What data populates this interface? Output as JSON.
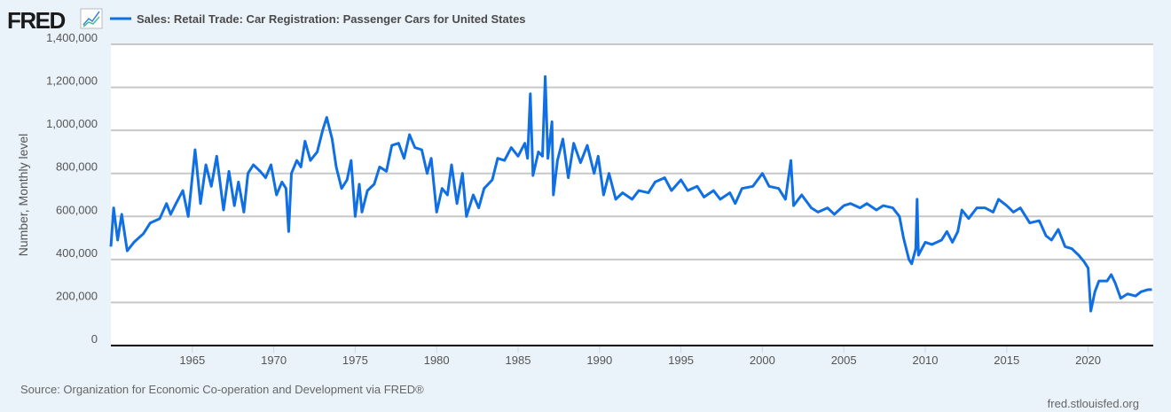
{
  "header": {
    "logo": "FRED",
    "logo_icon": "line-chart-icon",
    "legend_label": "Sales: Retail Trade: Car Registration: Passenger Cars for United States"
  },
  "footer": {
    "source": "Source: Organization for Economic Co-operation and Development via FRED®",
    "site": "fred.stlouisfed.org"
  },
  "colors": {
    "line": "#0f6fe3",
    "grid": "#c8c8c8",
    "plot_bg": "#ffffff",
    "page_bg": "#eaf2fa"
  },
  "chart_data": {
    "type": "line",
    "title": "",
    "xlabel": "",
    "ylabel": "Number, Monthly level",
    "xlim": [
      "1960-01",
      "2024-01"
    ],
    "ylim": [
      0,
      1400000
    ],
    "grid": true,
    "legend": "top-left",
    "x_ticks": [
      "1965",
      "1970",
      "1975",
      "1980",
      "1985",
      "1990",
      "1995",
      "2000",
      "2005",
      "2010",
      "2015",
      "2020"
    ],
    "y_ticks": [
      {
        "value": 0,
        "label": "0"
      },
      {
        "value": 200000,
        "label": "200,000"
      },
      {
        "value": 400000,
        "label": "400,000"
      },
      {
        "value": 600000,
        "label": "600,000"
      },
      {
        "value": 800000,
        "label": "800,000"
      },
      {
        "value": 1000000,
        "label": "1,000,000"
      },
      {
        "value": 1200000,
        "label": "1,200,000"
      },
      {
        "value": 1400000,
        "label": "1,400,000"
      }
    ],
    "series": [
      {
        "name": "Sales: Retail Trade: Car Registration: Passenger Cars for United States",
        "points": [
          [
            "1960-01",
            460000
          ],
          [
            "1960-03",
            640000
          ],
          [
            "1960-06",
            490000
          ],
          [
            "1960-09",
            610000
          ],
          [
            "1961-01",
            440000
          ],
          [
            "1961-06",
            480000
          ],
          [
            "1962-01",
            520000
          ],
          [
            "1962-06",
            570000
          ],
          [
            "1963-01",
            590000
          ],
          [
            "1963-06",
            660000
          ],
          [
            "1963-09",
            610000
          ],
          [
            "1964-01",
            660000
          ],
          [
            "1964-06",
            720000
          ],
          [
            "1964-10",
            600000
          ],
          [
            "1965-03",
            910000
          ],
          [
            "1965-07",
            660000
          ],
          [
            "1965-11",
            840000
          ],
          [
            "1966-03",
            740000
          ],
          [
            "1966-07",
            880000
          ],
          [
            "1966-12",
            630000
          ],
          [
            "1967-04",
            810000
          ],
          [
            "1967-08",
            650000
          ],
          [
            "1967-11",
            760000
          ],
          [
            "1968-03",
            620000
          ],
          [
            "1968-06",
            800000
          ],
          [
            "1968-10",
            840000
          ],
          [
            "1969-03",
            810000
          ],
          [
            "1969-07",
            780000
          ],
          [
            "1969-11",
            840000
          ],
          [
            "1970-03",
            700000
          ],
          [
            "1970-07",
            760000
          ],
          [
            "1970-10",
            730000
          ],
          [
            "1970-12",
            530000
          ],
          [
            "1971-02",
            800000
          ],
          [
            "1971-06",
            860000
          ],
          [
            "1971-09",
            830000
          ],
          [
            "1971-12",
            950000
          ],
          [
            "1972-04",
            860000
          ],
          [
            "1972-09",
            900000
          ],
          [
            "1973-01",
            1000000
          ],
          [
            "1973-04",
            1060000
          ],
          [
            "1973-08",
            960000
          ],
          [
            "1973-11",
            830000
          ],
          [
            "1974-03",
            730000
          ],
          [
            "1974-07",
            770000
          ],
          [
            "1974-10",
            860000
          ],
          [
            "1975-01",
            600000
          ],
          [
            "1975-04",
            750000
          ],
          [
            "1975-06",
            620000
          ],
          [
            "1975-10",
            720000
          ],
          [
            "1976-03",
            750000
          ],
          [
            "1976-07",
            830000
          ],
          [
            "1976-12",
            810000
          ],
          [
            "1977-04",
            930000
          ],
          [
            "1977-09",
            940000
          ],
          [
            "1978-01",
            870000
          ],
          [
            "1978-05",
            980000
          ],
          [
            "1978-09",
            920000
          ],
          [
            "1979-02",
            910000
          ],
          [
            "1979-06",
            800000
          ],
          [
            "1979-09",
            870000
          ],
          [
            "1980-01",
            620000
          ],
          [
            "1980-05",
            730000
          ],
          [
            "1980-09",
            700000
          ],
          [
            "1980-12",
            840000
          ],
          [
            "1981-04",
            660000
          ],
          [
            "1981-08",
            800000
          ],
          [
            "1981-11",
            600000
          ],
          [
            "1982-04",
            700000
          ],
          [
            "1982-08",
            640000
          ],
          [
            "1982-12",
            730000
          ],
          [
            "1983-06",
            770000
          ],
          [
            "1983-10",
            870000
          ],
          [
            "1984-03",
            860000
          ],
          [
            "1984-08",
            920000
          ],
          [
            "1985-01",
            880000
          ],
          [
            "1985-06",
            940000
          ],
          [
            "1985-08",
            870000
          ],
          [
            "1985-10",
            1170000
          ],
          [
            "1985-12",
            790000
          ],
          [
            "1986-04",
            900000
          ],
          [
            "1986-07",
            880000
          ],
          [
            "1986-09",
            1250000
          ],
          [
            "1986-11",
            870000
          ],
          [
            "1987-02",
            1040000
          ],
          [
            "1987-03",
            700000
          ],
          [
            "1987-06",
            860000
          ],
          [
            "1987-10",
            960000
          ],
          [
            "1988-02",
            780000
          ],
          [
            "1988-06",
            940000
          ],
          [
            "1988-11",
            850000
          ],
          [
            "1989-04",
            930000
          ],
          [
            "1989-09",
            800000
          ],
          [
            "1989-12",
            880000
          ],
          [
            "1990-04",
            700000
          ],
          [
            "1990-08",
            800000
          ],
          [
            "1991-01",
            680000
          ],
          [
            "1991-06",
            710000
          ],
          [
            "1992-01",
            680000
          ],
          [
            "1992-06",
            720000
          ],
          [
            "1993-01",
            710000
          ],
          [
            "1993-06",
            760000
          ],
          [
            "1994-01",
            780000
          ],
          [
            "1994-06",
            720000
          ],
          [
            "1995-01",
            770000
          ],
          [
            "1995-06",
            720000
          ],
          [
            "1996-01",
            740000
          ],
          [
            "1996-06",
            690000
          ],
          [
            "1997-01",
            720000
          ],
          [
            "1997-06",
            680000
          ],
          [
            "1998-01",
            710000
          ],
          [
            "1998-05",
            660000
          ],
          [
            "1998-10",
            730000
          ],
          [
            "1999-06",
            740000
          ],
          [
            "2000-01",
            800000
          ],
          [
            "2000-06",
            740000
          ],
          [
            "2001-01",
            730000
          ],
          [
            "2001-06",
            680000
          ],
          [
            "2001-10",
            860000
          ],
          [
            "2001-12",
            650000
          ],
          [
            "2002-06",
            700000
          ],
          [
            "2003-01",
            640000
          ],
          [
            "2003-06",
            620000
          ],
          [
            "2004-01",
            640000
          ],
          [
            "2004-06",
            610000
          ],
          [
            "2005-01",
            650000
          ],
          [
            "2005-06",
            660000
          ],
          [
            "2006-01",
            640000
          ],
          [
            "2006-06",
            660000
          ],
          [
            "2007-01",
            630000
          ],
          [
            "2007-06",
            650000
          ],
          [
            "2008-01",
            640000
          ],
          [
            "2008-06",
            600000
          ],
          [
            "2008-09",
            500000
          ],
          [
            "2009-01",
            400000
          ],
          [
            "2009-03",
            380000
          ],
          [
            "2009-06",
            450000
          ],
          [
            "2009-07",
            680000
          ],
          [
            "2009-08",
            420000
          ],
          [
            "2010-01",
            480000
          ],
          [
            "2010-06",
            470000
          ],
          [
            "2011-01",
            490000
          ],
          [
            "2011-05",
            530000
          ],
          [
            "2011-09",
            480000
          ],
          [
            "2012-01",
            530000
          ],
          [
            "2012-04",
            630000
          ],
          [
            "2012-09",
            590000
          ],
          [
            "2013-03",
            640000
          ],
          [
            "2013-09",
            640000
          ],
          [
            "2014-03",
            620000
          ],
          [
            "2014-07",
            680000
          ],
          [
            "2015-01",
            650000
          ],
          [
            "2015-06",
            620000
          ],
          [
            "2015-11",
            640000
          ],
          [
            "2016-06",
            570000
          ],
          [
            "2017-01",
            580000
          ],
          [
            "2017-06",
            510000
          ],
          [
            "2017-10",
            490000
          ],
          [
            "2018-03",
            540000
          ],
          [
            "2018-08",
            460000
          ],
          [
            "2019-01",
            450000
          ],
          [
            "2019-06",
            420000
          ],
          [
            "2019-10",
            390000
          ],
          [
            "2020-01",
            360000
          ],
          [
            "2020-03",
            160000
          ],
          [
            "2020-06",
            250000
          ],
          [
            "2020-09",
            300000
          ],
          [
            "2021-03",
            300000
          ],
          [
            "2021-06",
            330000
          ],
          [
            "2021-09",
            290000
          ],
          [
            "2022-01",
            220000
          ],
          [
            "2022-06",
            240000
          ],
          [
            "2022-12",
            230000
          ],
          [
            "2023-04",
            250000
          ],
          [
            "2023-09",
            260000
          ],
          [
            "2023-12",
            260000
          ]
        ]
      }
    ]
  }
}
